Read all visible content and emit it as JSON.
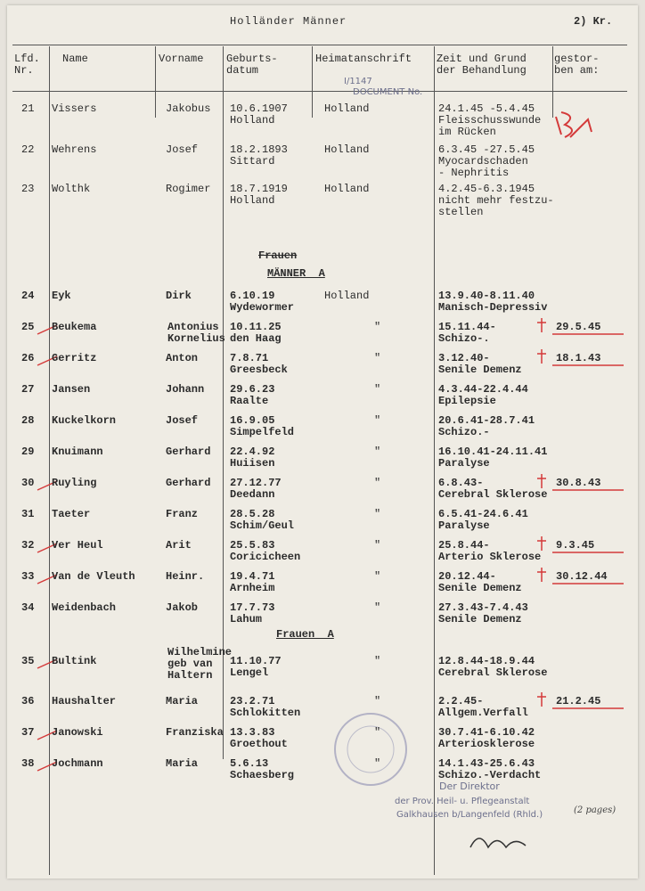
{
  "header": {
    "title": "Holländer Männer",
    "page": "2) Kr."
  },
  "columns": [
    "Lfd.\nNr.",
    "Name",
    "Vorname",
    "Geburts-\ndatum",
    "Heimatanschrift",
    "Zeit und Grund\nder Behandlung",
    "gestor-\nben am:"
  ],
  "stamp": {
    "label": "DOCUMENT No.",
    "number": "I/1147"
  },
  "sections": [
    {
      "title": "Frauen"
    },
    {
      "title": "MÄNNER  A"
    },
    {
      "title": "Frauen  A"
    }
  ],
  "rows": [
    {
      "nr": "21",
      "name": "Vissers",
      "vorname": "Jakobus",
      "geburt": "10.6.1907\nHolland",
      "heimat": "Holland",
      "behandlung": "24.1.45 -5.4.45\nFleisschusswunde\nim Rücken"
    },
    {
      "nr": "22",
      "name": "Wehrens",
      "vorname": "Josef",
      "geburt": "18.2.1893\nSittard",
      "heimat": "Holland",
      "behandlung": "6.3.45 -27.5.45\nMyocardschaden\n- Nephritis"
    },
    {
      "nr": "23",
      "name": "Wolthk",
      "vorname": "Rogimer",
      "geburt": "18.7.1919\nHolland",
      "heimat": "Holland",
      "behandlung": "4.2.45-6.3.1945\nnicht mehr festzu-\nstellen"
    },
    {
      "nr": "24",
      "name": "Eyk",
      "vorname": "Dirk",
      "geburt": "6.10.19\nWydewormer",
      "heimat": "Holland",
      "behandlung": "13.9.40-8.11.40\nManisch-Depressiv"
    },
    {
      "nr": "25",
      "name": "Beukema",
      "vorname": "Antonius\nKornelius",
      "geburt": "10.11.25\nden Haag",
      "heimat": "\"",
      "behandlung": "15.11.44-\nSchizo-.",
      "gestorben": "29.5.45"
    },
    {
      "nr": "26",
      "name": "Gerritz",
      "vorname": "Anton",
      "geburt": "7.8.71\nGreesbeck",
      "heimat": "\"",
      "behandlung": "3.12.40-\nSenile Demenz",
      "gestorben": "18.1.43"
    },
    {
      "nr": "27",
      "name": "Jansen",
      "vorname": "Johann",
      "geburt": "29.6.23\nRaalte",
      "heimat": "\"",
      "behandlung": "4.3.44-22.4.44\nEpilepsie"
    },
    {
      "nr": "28",
      "name": "Kuckelkorn",
      "vorname": "Josef",
      "geburt": "16.9.05\nSimpelfeld",
      "heimat": "\"",
      "behandlung": "20.6.41-28.7.41\nSchizo.-"
    },
    {
      "nr": "29",
      "name": "Knuimann",
      "vorname": "Gerhard",
      "geburt": "22.4.92\nHuiisen",
      "heimat": "\"",
      "behandlung": "16.10.41-24.11.41\nParalyse"
    },
    {
      "nr": "30",
      "name": "Ruyling",
      "vorname": "Gerhard",
      "geburt": "27.12.77\nDeedann",
      "heimat": "\"",
      "behandlung": "6.8.43-\nCerebral Sklerose",
      "gestorben": "30.8.43"
    },
    {
      "nr": "31",
      "name": "Taeter",
      "vorname": "Franz",
      "geburt": "28.5.28\nSchim/Geul",
      "heimat": "\"",
      "behandlung": "6.5.41-24.6.41\nParalyse"
    },
    {
      "nr": "32",
      "name": "Ver Heul",
      "vorname": "Arit",
      "geburt": "25.5.83\nCoricicheen",
      "heimat": "\"",
      "behandlung": "25.8.44-\nArterio Sklerose",
      "gestorben": "9.3.45"
    },
    {
      "nr": "33",
      "name": "Van de Vleuth",
      "vorname": "Heinr.",
      "geburt": "19.4.71\nArnheim",
      "heimat": "\"",
      "behandlung": "20.12.44-\nSenile Demenz",
      "gestorben": "30.12.44"
    },
    {
      "nr": "34",
      "name": "Weidenbach",
      "vorname": "Jakob",
      "geburt": "17.7.73\nLahum",
      "heimat": "\"",
      "behandlung": "27.3.43-7.4.43\nSenile Demenz"
    },
    {
      "nr": "35",
      "name": "Bultink",
      "vorname": "Wilhelmine\ngeb van\nHaltern",
      "geburt": "11.10.77\nLengel",
      "heimat": "\"",
      "behandlung": "12.8.44-18.9.44\nCerebral Sklerose"
    },
    {
      "nr": "36",
      "name": "Haushalter",
      "vorname": "Maria",
      "geburt": "23.2.71\nSchlokitten",
      "heimat": "\"",
      "behandlung": "2.2.45-\nAllgem.Verfall",
      "gestorben": "21.2.45"
    },
    {
      "nr": "37",
      "name": "Janowski",
      "vorname": "Franziska",
      "geburt": "13.3.83\nGroethout",
      "heimat": "\"",
      "behandlung": "30.7.41-6.10.42\nArteriosklerose"
    },
    {
      "nr": "38",
      "name": "Jochmann",
      "vorname": "Maria",
      "geburt": "5.6.13\nSchaesberg",
      "heimat": "\"",
      "behandlung": "14.1.43-25.6.43\nSchizo.-Verdacht"
    }
  ],
  "footer": {
    "line1": "Der Direktor",
    "line2": "der Prov. Heil- u. Pflegeanstalt",
    "line3": "Galkhausen b/Langenfeld (Rhld.)",
    "note": "(2 pages)"
  }
}
